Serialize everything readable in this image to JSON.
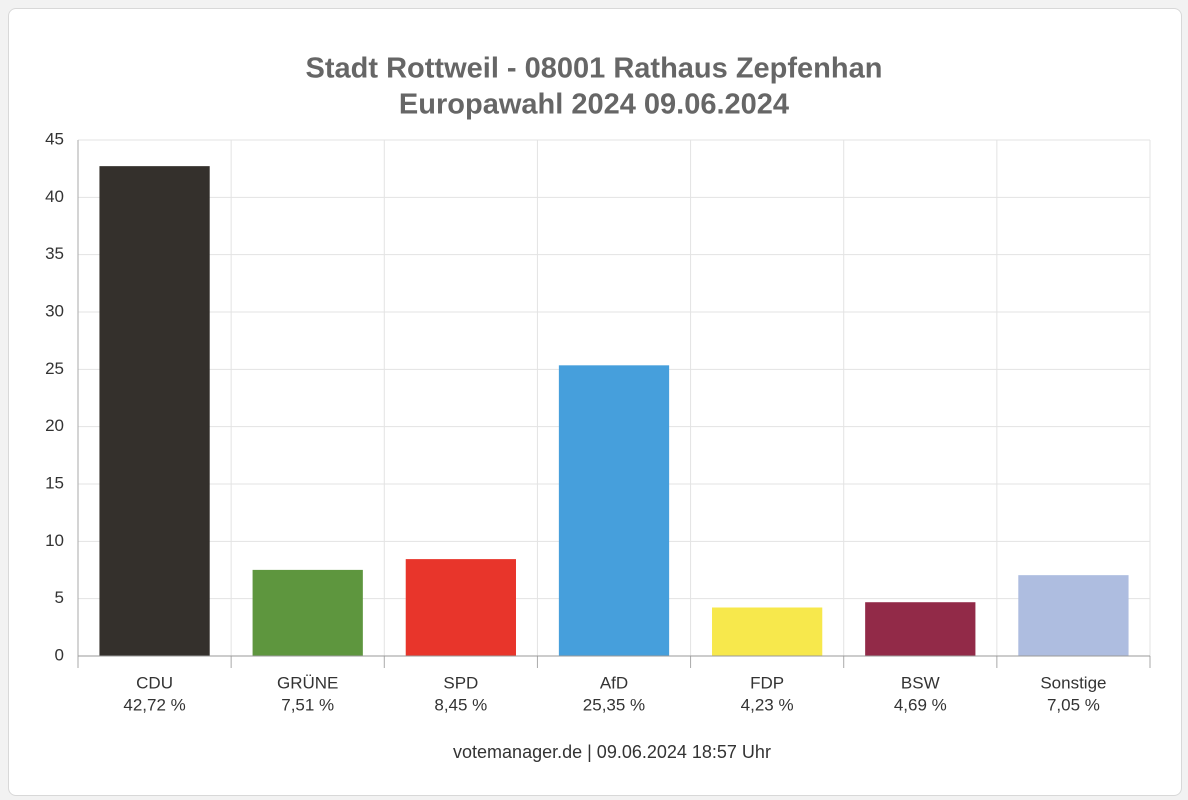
{
  "chart_data": {
    "type": "bar",
    "title": "Stadt Rottweil - 08001 Rathaus Zepfenhan",
    "subtitle": "Europawahl 2024 09.06.2024",
    "categories": [
      "CDU",
      "GRÜNE",
      "SPD",
      "AfD",
      "FDP",
      "BSW",
      "Sonstige"
    ],
    "values": [
      42.72,
      7.51,
      8.45,
      25.35,
      4.23,
      4.69,
      7.05
    ],
    "value_labels": [
      "42,72 %",
      "7,51 %",
      "8,45 %",
      "25,35 %",
      "4,23 %",
      "4,69 %",
      "7,05 %"
    ],
    "colors": [
      "#34302c",
      "#5e963e",
      "#e8352b",
      "#469fdc",
      "#f7e84c",
      "#922a48",
      "#aebde0"
    ],
    "ylim": [
      0,
      45
    ],
    "yticks": [
      0,
      5,
      10,
      15,
      20,
      25,
      30,
      35,
      40,
      45
    ],
    "grid": true,
    "source": "votemanager.de | 09.06.2024 18:57 Uhr"
  }
}
